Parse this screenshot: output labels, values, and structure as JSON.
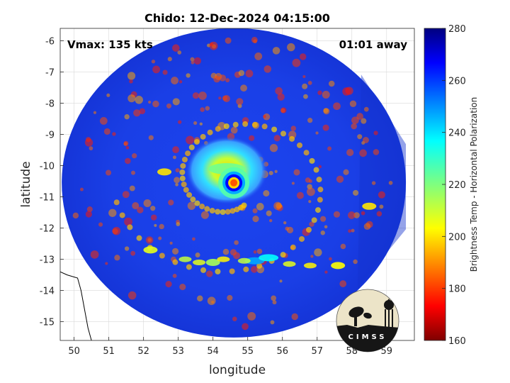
{
  "chart_data": {
    "type": "heatmap",
    "title": "Chido: 12-Dec-2024 04:15:00",
    "xlabel": "longitude",
    "ylabel": "latitude",
    "xlim": [
      49.6,
      59.8
    ],
    "ylim": [
      -15.6,
      -5.6
    ],
    "xticks": [
      50,
      51,
      52,
      53,
      54,
      55,
      56,
      57,
      58,
      59
    ],
    "yticks": [
      -6,
      -7,
      -8,
      -9,
      -10,
      -11,
      -12,
      -13,
      -14,
      -15
    ],
    "grid": true,
    "annotations": {
      "vmax": "Vmax: 135 kts",
      "away": "01:01 away"
    },
    "colorbar": {
      "label": "Brightness Temp - Horizontal Polarization",
      "range": [
        160,
        280
      ],
      "ticks": [
        160,
        180,
        200,
        220,
        240,
        260,
        280
      ],
      "colormap": "jet"
    },
    "storm_center": {
      "lon": 54.6,
      "lat": -10.55
    },
    "swath_center": {
      "lon": 54.6,
      "lat": -10.55
    },
    "swath_radius_deg": 5.6,
    "coastline": [
      [
        49.6,
        -13.4
      ],
      [
        49.8,
        -13.5
      ],
      [
        50.1,
        -13.6
      ],
      [
        50.2,
        -14.0
      ],
      [
        50.3,
        -14.6
      ],
      [
        50.4,
        -15.2
      ],
      [
        50.5,
        -15.6
      ]
    ],
    "features": [
      {
        "kind": "eye",
        "lon": 54.6,
        "lat": -10.55,
        "tb": 230
      },
      {
        "kind": "eyewall",
        "lon": 54.6,
        "lat": -10.55,
        "tb": 180
      },
      {
        "kind": "inner-band",
        "lon": 54.4,
        "lat": -10.1,
        "tb": 218
      },
      {
        "kind": "rain-band",
        "lon": 55.2,
        "lat": -13.05,
        "tb": 195
      },
      {
        "kind": "rain-band",
        "lon": 55.6,
        "lat": -12.95,
        "tb": 205
      },
      {
        "kind": "rain-band",
        "lon": 54.0,
        "lat": -13.1,
        "tb": 225
      },
      {
        "kind": "rain-band",
        "lon": 52.2,
        "lat": -12.7,
        "tb": 232
      },
      {
        "kind": "rain-band",
        "lon": 57.6,
        "lat": -13.2,
        "tb": 235
      },
      {
        "kind": "rain-band",
        "lon": 52.6,
        "lat": -10.2,
        "tb": 238
      },
      {
        "kind": "rain-band",
        "lon": 58.5,
        "lat": -11.3,
        "tb": 238
      }
    ]
  },
  "logo": {
    "text": "CIMSS"
  }
}
